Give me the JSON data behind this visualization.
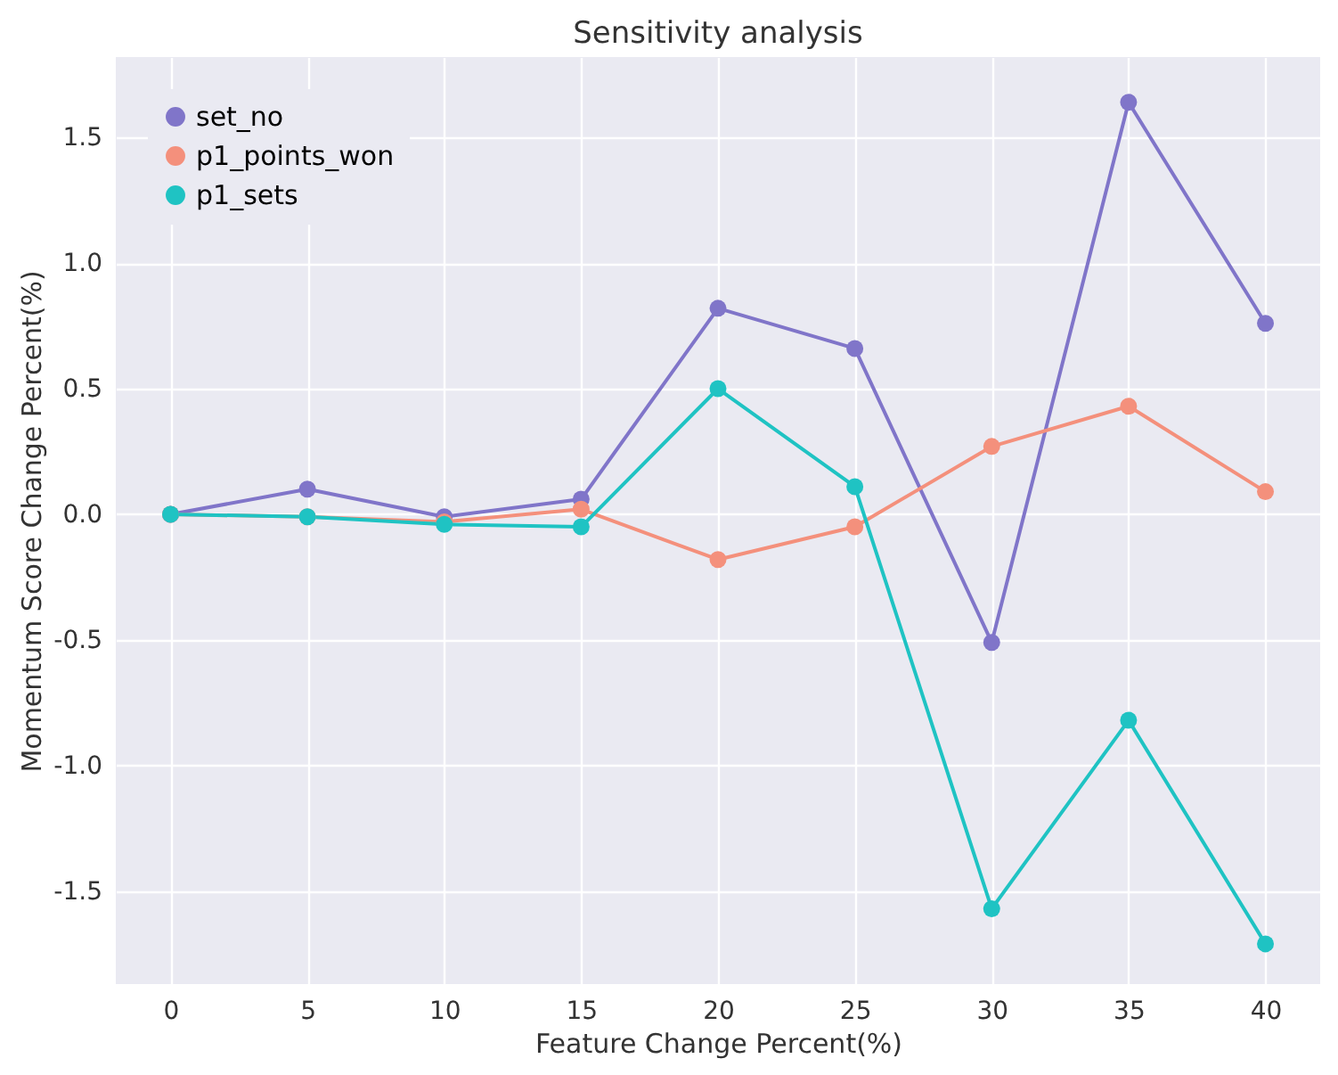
{
  "chart_data": {
    "type": "line",
    "title": "Sensitivity analysis",
    "xlabel": "Feature Change Percent(%)",
    "ylabel": "Momentum Score Change Percent(%)",
    "x": [
      0,
      5,
      10,
      15,
      20,
      25,
      30,
      35,
      40
    ],
    "series": [
      {
        "name": "set_no",
        "color": "#8075c9",
        "values": [
          0,
          0.1,
          -0.01,
          0.06,
          0.82,
          0.66,
          -0.51,
          1.64,
          0.76
        ]
      },
      {
        "name": "p1_points_won",
        "color": "#f4907c",
        "values": [
          0,
          -0.01,
          -0.03,
          0.02,
          -0.18,
          -0.05,
          0.27,
          0.43,
          0.09
        ]
      },
      {
        "name": "p1_sets",
        "color": "#1fc3c3",
        "values": [
          0,
          -0.01,
          -0.04,
          -0.05,
          0.5,
          0.11,
          -1.57,
          -0.82,
          -1.71
        ]
      }
    ],
    "xlim": [
      -2,
      42
    ],
    "xticks": [
      0,
      5,
      10,
      15,
      20,
      25,
      30,
      35,
      40
    ],
    "ylim": [
      -1.87,
      1.82
    ],
    "yticks": [
      -1.5,
      {
        "value": -1,
        "label": "-1.0"
      },
      -0.5,
      {
        "value": 0,
        "label": "0.0"
      },
      0.5,
      {
        "value": 1,
        "label": "1.0"
      },
      1.5
    ],
    "grid": true,
    "legend": "top left",
    "marker": "circle",
    "line_style": "solid"
  }
}
